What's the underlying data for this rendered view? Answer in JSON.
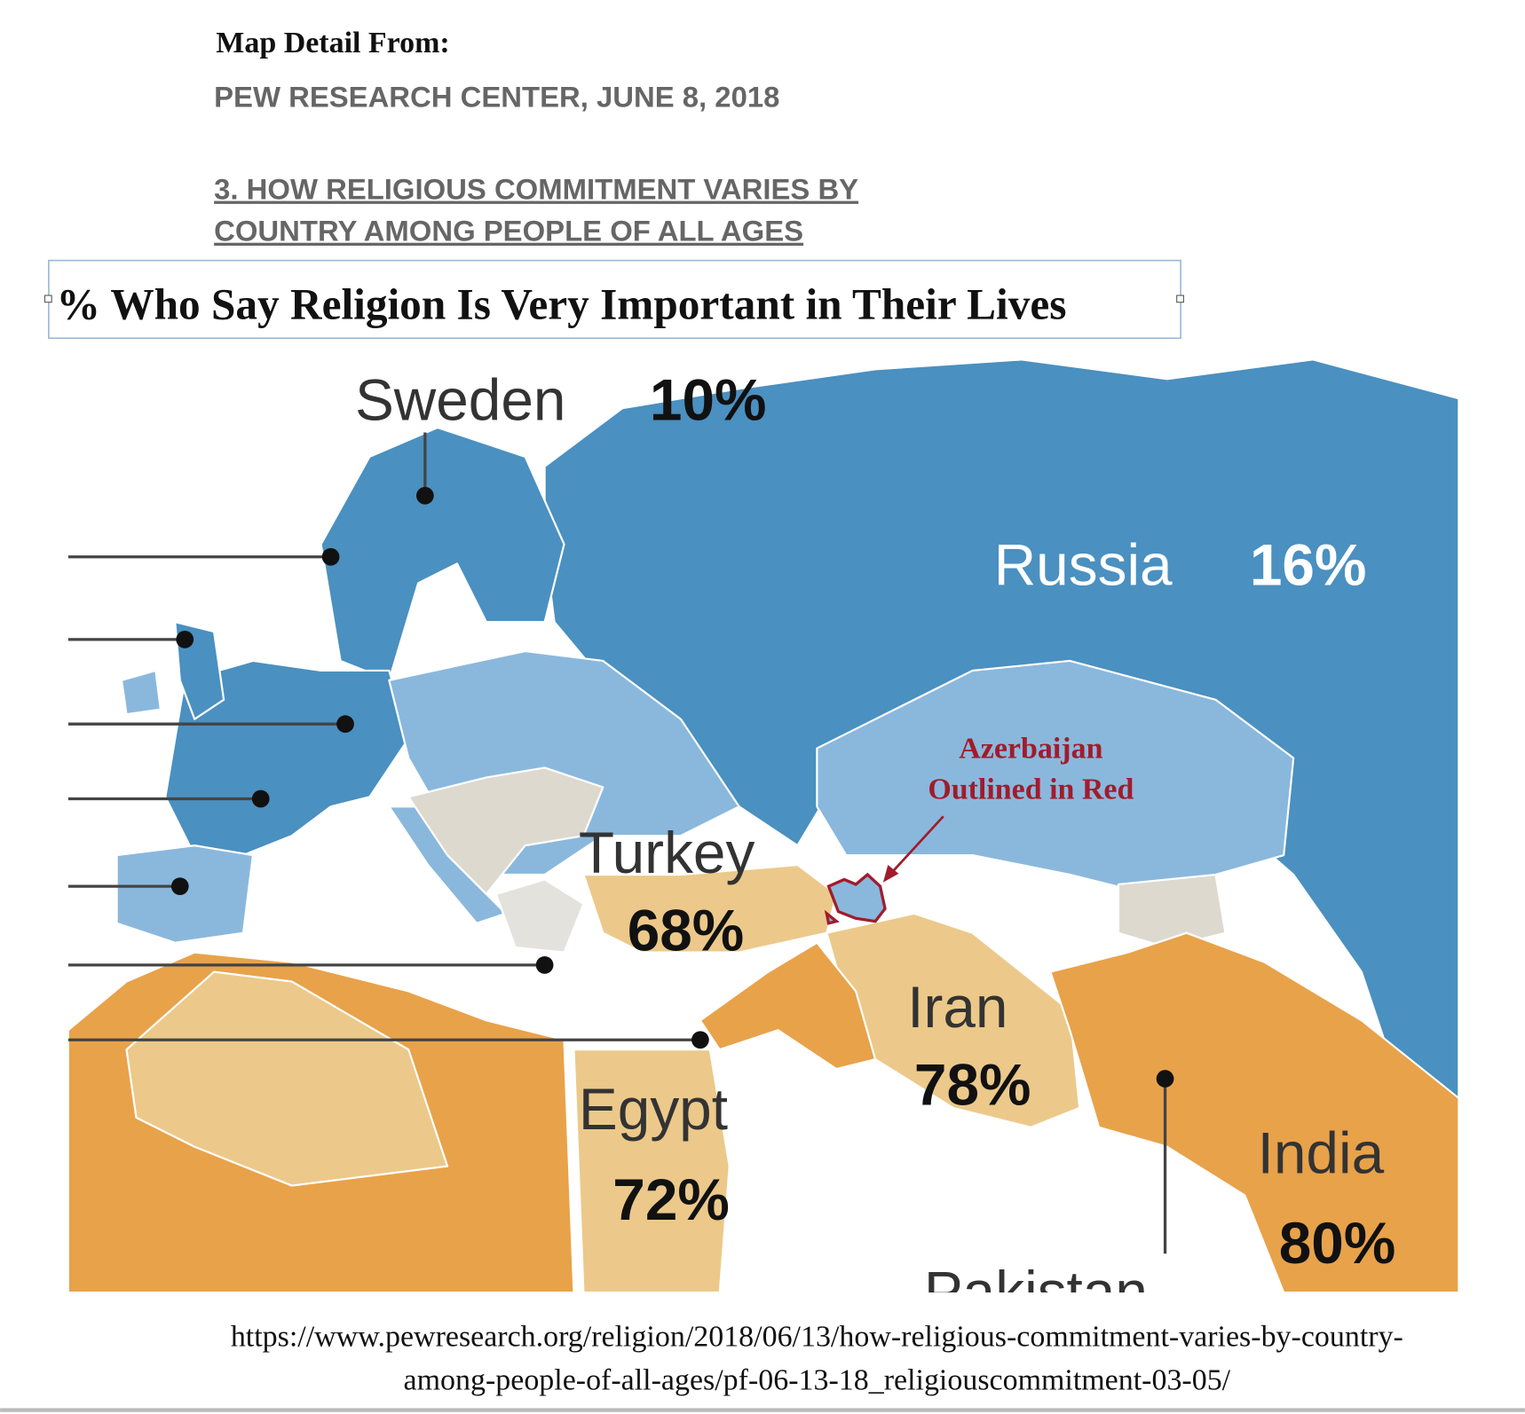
{
  "header": {
    "intro": "Map Detail From:",
    "source": "PEW RESEARCH CENTER, JUNE 8, 2018",
    "link_lines": [
      "3. HOW RELIGIOUS COMMITMENT VARIES BY",
      "COUNTRY AMONG PEOPLE OF ALL AGES"
    ]
  },
  "title": "% Who Say Religion Is Very Important in Their Lives",
  "map": {
    "countries": [
      {
        "name": "Sweden",
        "value": "10%"
      },
      {
        "name": "Russia",
        "value": "16%"
      },
      {
        "name": "Turkey",
        "value": "68%"
      },
      {
        "name": "Iran",
        "value": "78%"
      },
      {
        "name": "Egypt",
        "value": "72%"
      },
      {
        "name": "India",
        "value": "80%"
      },
      {
        "name": "Pakistan"
      }
    ],
    "annotation": [
      "Azerbaijan",
      "Outlined in Red"
    ]
  },
  "footer": {
    "url_lines": [
      "https://www.pewresearch.org/religion/2018/06/13/how-religious-commitment-varies-by-country-",
      "among-people-of-all-ages/pf-06-13-18_religiouscommitment-03-05/"
    ]
  }
}
